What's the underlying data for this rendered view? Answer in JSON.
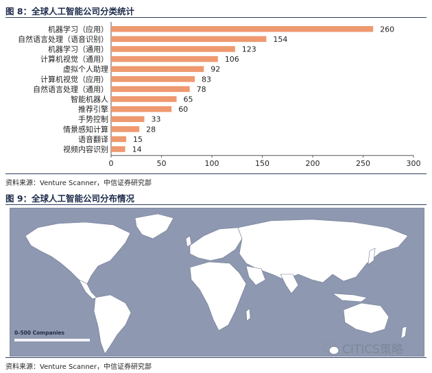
{
  "figure1": {
    "title": "图 8：全球人工智能公司分类统计",
    "source": "资料来源：Venture Scanner，中信证券研究部"
  },
  "figure2": {
    "title": "图 9：全球人工智能公司分布情况",
    "source": "资料来源：Venture Scanner，中信证券研究部",
    "legend_label": "0-500 Companies",
    "watermark": "CITICS策略"
  },
  "colors": {
    "bar": "#ee9970",
    "axis": "#555555",
    "map_bg": "#8e98b0",
    "land": "#ffffff"
  },
  "icons": {
    "watermark_icon": "wechat-icon"
  },
  "chart_data": {
    "type": "bar",
    "orientation": "horizontal",
    "title": "",
    "categories": [
      "机器学习（应用）",
      "自然语言处理（语音识别）",
      "机器学习（通用）",
      "计算机视觉（通用）",
      "虚拟个人助理",
      "计算机视觉（应用）",
      "自然语言处理（通用）",
      "智能机器人",
      "推荐引擎",
      "手势控制",
      "情景感知计算",
      "语音翻译",
      "视频内容识别"
    ],
    "values": [
      260,
      154,
      123,
      106,
      92,
      83,
      78,
      65,
      60,
      33,
      28,
      15,
      14
    ],
    "xlabel": "",
    "ylabel": "",
    "xlim": [
      0,
      300
    ],
    "ticks": [
      0,
      50,
      100,
      150,
      200,
      250,
      300
    ],
    "grid": false,
    "legend": false,
    "data_labels": true
  }
}
